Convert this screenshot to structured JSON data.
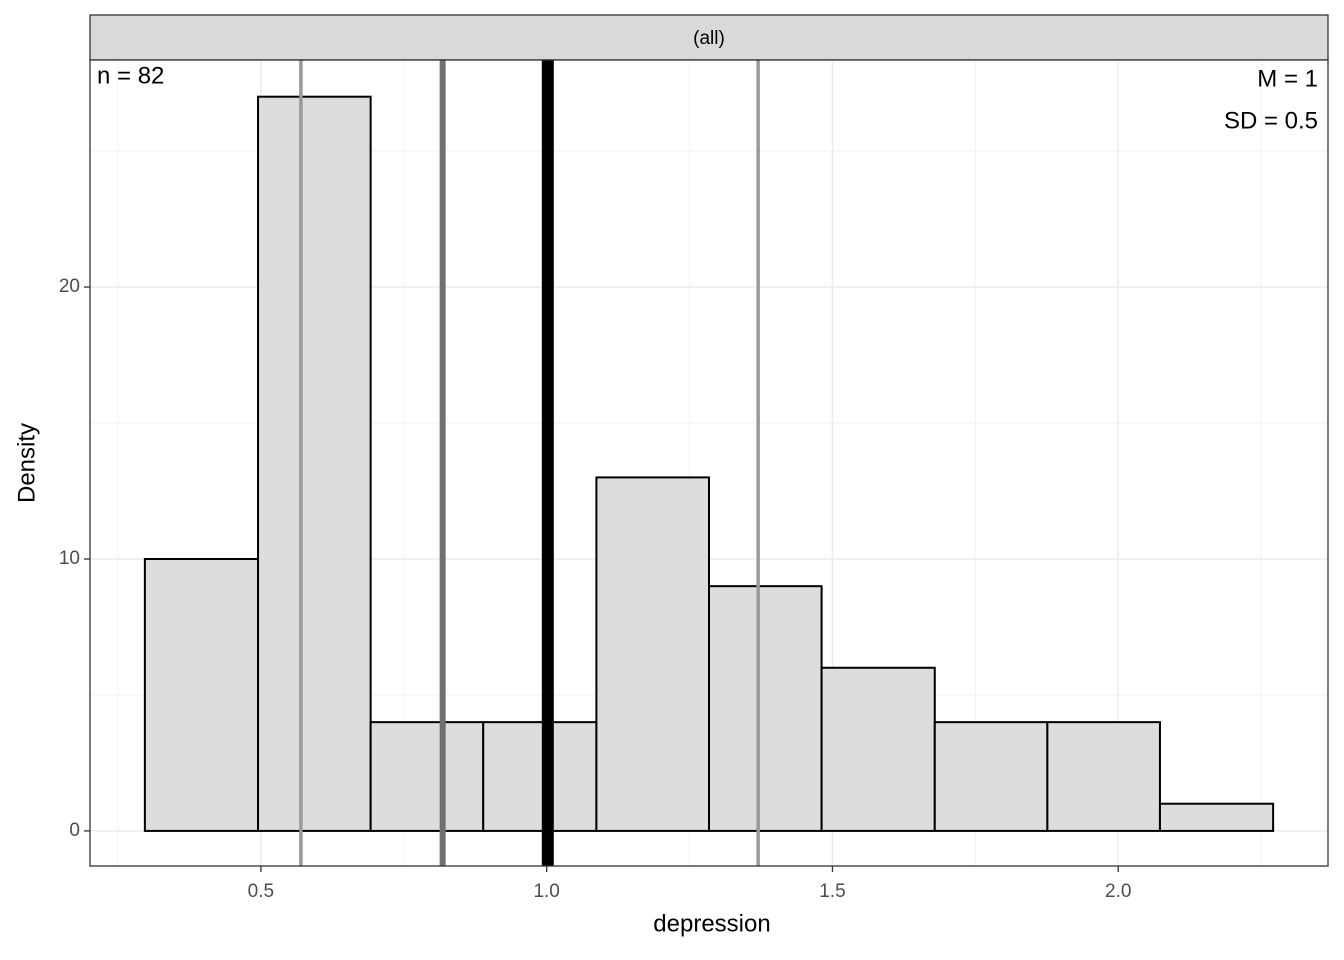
{
  "chart_data": {
    "type": "histogram",
    "strip": "(all)",
    "xlabel": "depression",
    "ylabel": "Density",
    "annotations": {
      "n": "n = 82",
      "mean": "M = 1",
      "sd": "SD = 0.5"
    },
    "bins": [
      0.297,
      0.495,
      0.692,
      0.889,
      1.087,
      1.284,
      1.481,
      1.679,
      1.876,
      2.073,
      2.271
    ],
    "values": [
      10,
      27,
      4,
      4,
      13,
      9,
      6,
      4,
      4,
      1
    ],
    "color": "#dddddd",
    "edgecolor": "#000000",
    "vlines": [
      {
        "value": 0.57,
        "color": "#999999"
      },
      {
        "value": 0.818,
        "color": "#707070"
      },
      {
        "value": 1.002,
        "color": "#000000"
      },
      {
        "value": 1.37,
        "color": "#999999"
      }
    ],
    "xlim": [
      0.201,
      2.367
    ],
    "ylim": [
      -1.29,
      28.35
    ],
    "xticks": [
      0.5,
      {
        "value": 1,
        "label": "1.0"
      },
      1.5,
      {
        "value": 2,
        "label": "2.0"
      }
    ],
    "yticks": [
      0,
      10,
      20
    ],
    "x_minor_grid": [
      0.25,
      0.75,
      1.25,
      1.75,
      2.25
    ],
    "y_minor_grid": [
      5,
      15,
      25
    ],
    "grid": true
  }
}
